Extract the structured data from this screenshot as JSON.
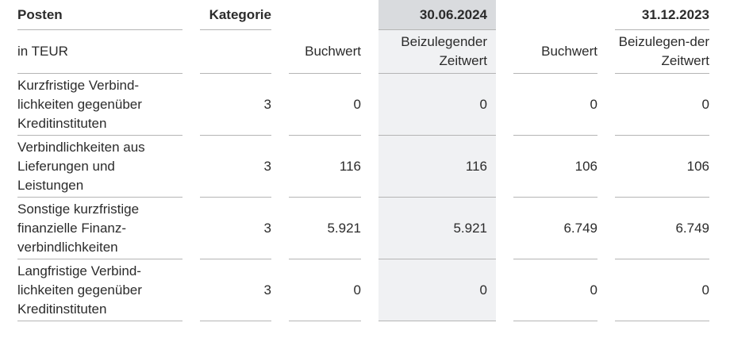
{
  "headers": {
    "posten": "Posten",
    "kategorie": "Kategorie",
    "date1": "30.06.2024",
    "date2": "31.12.2023"
  },
  "subheaders": {
    "unit": "in TEUR",
    "buchwert1": "Buchwert",
    "zeitwert1": "Beizulegender Zeitwert",
    "buchwert2": "Buchwert",
    "zeitwert2": "Beizulegen-der Zeitwert"
  },
  "rows": [
    {
      "posten": "Kurzfristige Verbind-lichkeiten gegenüber Kreditinstituten",
      "kategorie": "3",
      "buchwert1": "0",
      "zeitwert1": "0",
      "buchwert2": "0",
      "zeitwert2": "0"
    },
    {
      "posten": "Verbindlichkeiten aus Lieferungen und Leistungen",
      "kategorie": "3",
      "buchwert1": "116",
      "zeitwert1": "116",
      "buchwert2": "106",
      "zeitwert2": "106"
    },
    {
      "posten": "Sonstige kurzfristige finanzielle Finanz-verbindlichkeiten",
      "kategorie": "3",
      "buchwert1": "5.921",
      "zeitwert1": "5.921",
      "buchwert2": "6.749",
      "zeitwert2": "6.749"
    },
    {
      "posten": "Langfristige Verbind-lichkeiten gegenüber Kreditinstituten",
      "kategorie": "3",
      "buchwert1": "0",
      "zeitwert1": "0",
      "buchwert2": "0",
      "zeitwert2": "0"
    }
  ],
  "colors": {
    "highlight_header": "#d9dbde",
    "highlight_column": "#f0f1f3"
  }
}
